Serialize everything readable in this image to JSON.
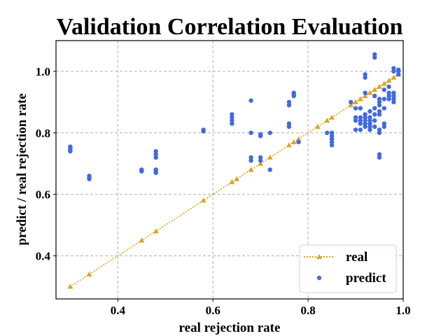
{
  "chart_data": {
    "type": "scatter",
    "title": "Validation Correlation Evaluation",
    "xlabel": "real rejection rate",
    "ylabel": "predict / real rejection rate",
    "xlim": [
      0.27,
      1.0
    ],
    "ylim": [
      0.26,
      1.1
    ],
    "xticks": [
      {
        "value": 0.4,
        "label": "0.4"
      },
      {
        "value": 0.6,
        "label": "0.6"
      },
      {
        "value": 0.8,
        "label": "0.8"
      },
      {
        "value": 1.0,
        "label": "1.0"
      }
    ],
    "yticks": [
      {
        "value": 0.4,
        "label": "0.4"
      },
      {
        "value": 0.6,
        "label": "0.6"
      },
      {
        "value": 0.8,
        "label": "0.8"
      },
      {
        "value": 1.0,
        "label": "1.0"
      }
    ],
    "grid": true,
    "legend_position": "lower-right",
    "series": [
      {
        "name": "real",
        "style": "dotted line with triangle markers",
        "color": "#DAA520",
        "x": [
          0.3,
          0.34,
          0.45,
          0.48,
          0.58,
          0.64,
          0.65,
          0.68,
          0.7,
          0.72,
          0.76,
          0.77,
          0.78,
          0.82,
          0.84,
          0.85,
          0.89,
          0.9,
          0.91,
          0.92,
          0.93,
          0.94,
          0.95,
          0.96,
          0.97,
          0.98,
          0.99
        ],
        "y": [
          0.3,
          0.34,
          0.45,
          0.48,
          0.58,
          0.64,
          0.65,
          0.68,
          0.7,
          0.72,
          0.76,
          0.77,
          0.78,
          0.82,
          0.84,
          0.85,
          0.89,
          0.9,
          0.91,
          0.92,
          0.93,
          0.94,
          0.95,
          0.96,
          0.97,
          0.98,
          0.99
        ]
      },
      {
        "name": "predict",
        "style": "scatter",
        "color": "#4169E1",
        "points": [
          [
            0.3,
            0.74
          ],
          [
            0.3,
            0.745
          ],
          [
            0.3,
            0.75
          ],
          [
            0.3,
            0.755
          ],
          [
            0.34,
            0.65
          ],
          [
            0.34,
            0.655
          ],
          [
            0.34,
            0.66
          ],
          [
            0.45,
            0.675
          ],
          [
            0.45,
            0.68
          ],
          [
            0.48,
            0.67
          ],
          [
            0.48,
            0.675
          ],
          [
            0.48,
            0.68
          ],
          [
            0.48,
            0.72
          ],
          [
            0.48,
            0.73
          ],
          [
            0.48,
            0.74
          ],
          [
            0.58,
            0.805
          ],
          [
            0.58,
            0.81
          ],
          [
            0.64,
            0.83
          ],
          [
            0.64,
            0.84
          ],
          [
            0.64,
            0.85
          ],
          [
            0.64,
            0.86
          ],
          [
            0.68,
            0.71
          ],
          [
            0.68,
            0.72
          ],
          [
            0.68,
            0.8
          ],
          [
            0.68,
            0.905
          ],
          [
            0.7,
            0.71
          ],
          [
            0.7,
            0.72
          ],
          [
            0.7,
            0.79
          ],
          [
            0.7,
            0.795
          ],
          [
            0.72,
            0.68
          ],
          [
            0.72,
            0.8
          ],
          [
            0.76,
            0.82
          ],
          [
            0.76,
            0.83
          ],
          [
            0.76,
            0.89
          ],
          [
            0.76,
            0.9
          ],
          [
            0.77,
            0.92
          ],
          [
            0.77,
            0.925
          ],
          [
            0.77,
            0.93
          ],
          [
            0.78,
            0.77
          ],
          [
            0.84,
            0.8
          ],
          [
            0.85,
            0.76
          ],
          [
            0.85,
            0.77
          ],
          [
            0.85,
            0.78
          ],
          [
            0.85,
            0.79
          ],
          [
            0.85,
            0.8
          ],
          [
            0.89,
            0.9
          ],
          [
            0.9,
            0.81
          ],
          [
            0.9,
            0.84
          ],
          [
            0.9,
            0.85
          ],
          [
            0.9,
            0.88
          ],
          [
            0.91,
            0.81
          ],
          [
            0.91,
            0.83
          ],
          [
            0.91,
            0.84
          ],
          [
            0.91,
            0.85
          ],
          [
            0.91,
            0.88
          ],
          [
            0.92,
            0.82
          ],
          [
            0.92,
            0.83
          ],
          [
            0.92,
            0.84
          ],
          [
            0.92,
            0.85
          ],
          [
            0.92,
            0.86
          ],
          [
            0.92,
            0.93
          ],
          [
            0.92,
            0.98
          ],
          [
            0.92,
            0.99
          ],
          [
            0.93,
            0.81
          ],
          [
            0.93,
            0.82
          ],
          [
            0.93,
            0.83
          ],
          [
            0.93,
            0.84
          ],
          [
            0.93,
            0.85
          ],
          [
            0.93,
            0.87
          ],
          [
            0.94,
            0.82
          ],
          [
            0.94,
            0.84
          ],
          [
            0.94,
            0.86
          ],
          [
            0.94,
            0.88
          ],
          [
            0.94,
            0.92
          ],
          [
            0.94,
            1.045
          ],
          [
            0.94,
            1.055
          ],
          [
            0.95,
            0.72
          ],
          [
            0.95,
            0.73
          ],
          [
            0.95,
            0.8
          ],
          [
            0.95,
            0.81
          ],
          [
            0.95,
            0.86
          ],
          [
            0.95,
            0.87
          ],
          [
            0.95,
            0.89
          ],
          [
            0.95,
            0.9
          ],
          [
            0.95,
            0.91
          ],
          [
            0.96,
            0.82
          ],
          [
            0.96,
            0.83
          ],
          [
            0.96,
            0.88
          ],
          [
            0.96,
            0.91
          ],
          [
            0.96,
            0.94
          ],
          [
            0.97,
            0.91
          ],
          [
            0.97,
            0.92
          ],
          [
            0.97,
            0.93
          ],
          [
            0.97,
            0.95
          ],
          [
            0.98,
            0.9
          ],
          [
            0.98,
            0.91
          ],
          [
            0.98,
            0.92
          ],
          [
            0.98,
            0.93
          ],
          [
            0.98,
            1.0
          ],
          [
            0.98,
            1.01
          ],
          [
            0.99,
            0.99
          ],
          [
            0.99,
            1.0
          ],
          [
            0.99,
            1.005
          ]
        ]
      }
    ]
  }
}
